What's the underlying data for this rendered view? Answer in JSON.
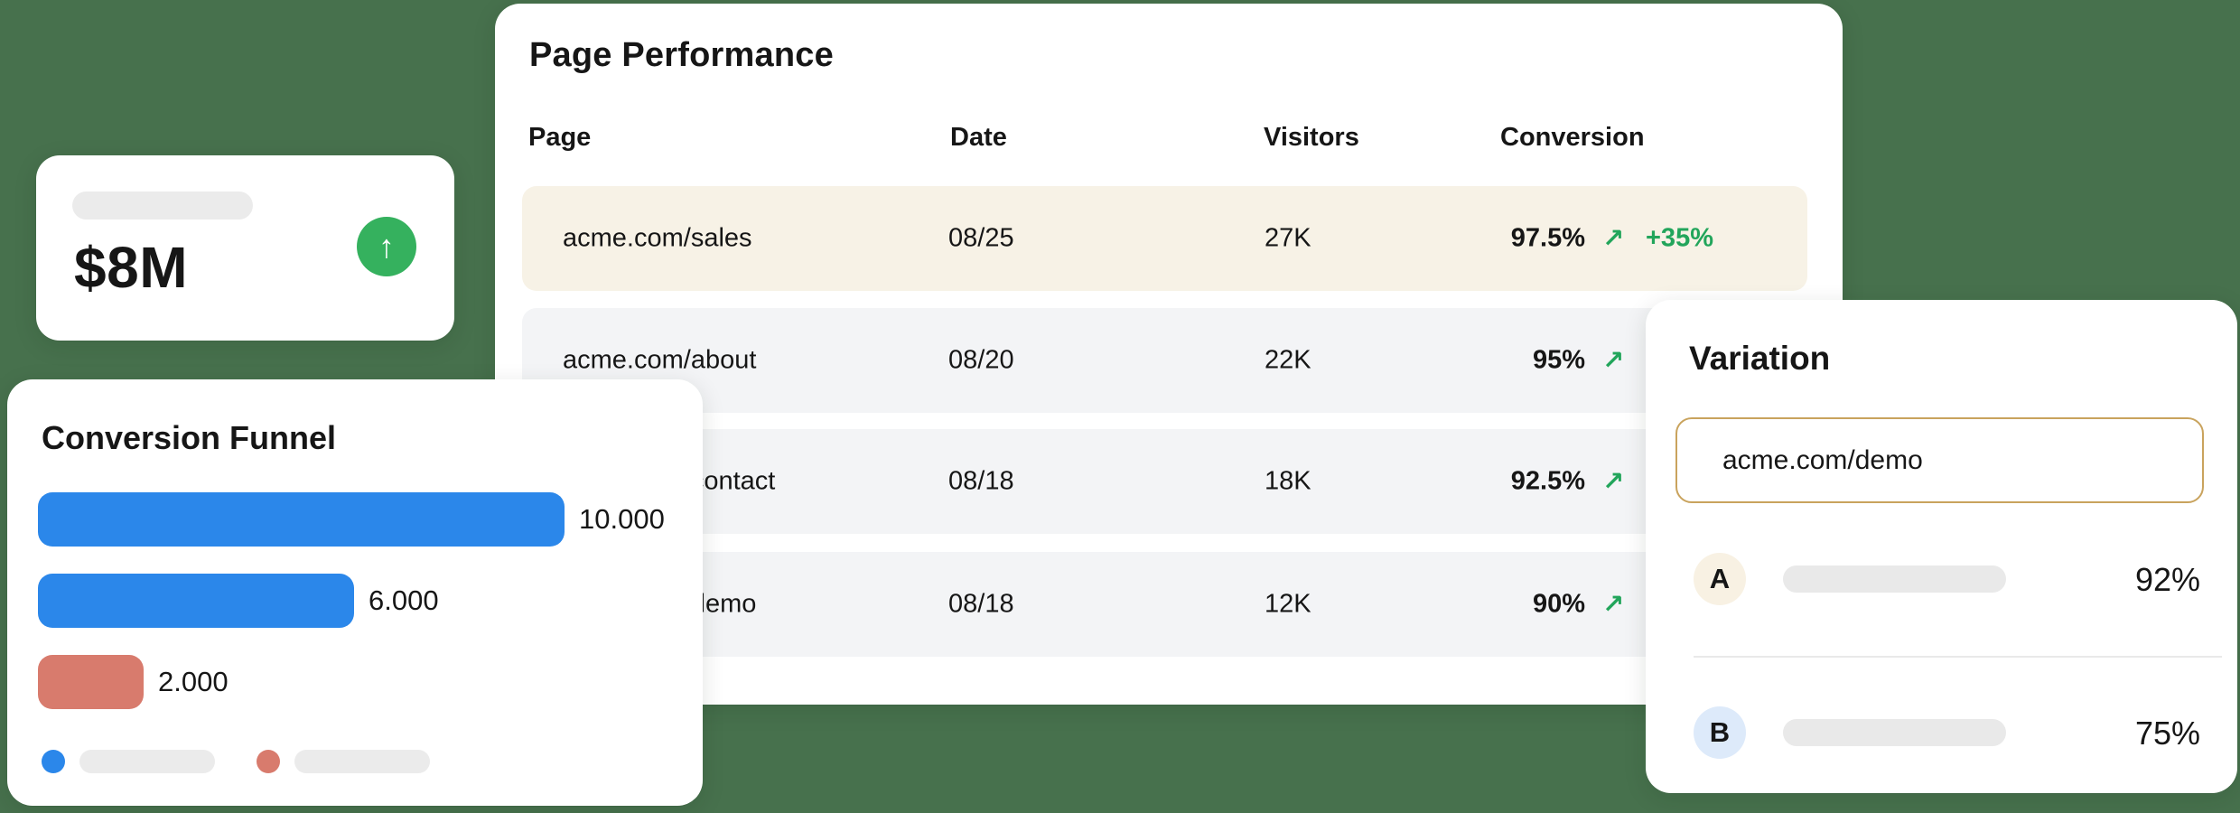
{
  "colors": {
    "background_green": "#47714d",
    "accent_green": "#22a55b",
    "trend_circle_green": "#35b15e",
    "highlight_row_beige": "#f7f2e6",
    "row_gray": "#f3f4f6",
    "funnel_blue": "#2b87ea",
    "funnel_salmon": "#d87b6d",
    "input_border_gold": "#c9a35d",
    "badge_a_beige": "#f8f1e3",
    "badge_b_blue": "#ddeafa"
  },
  "icons": {
    "trend_up": "↗",
    "arrow_up": "↑"
  },
  "revenue_card": {
    "value": "$8M"
  },
  "page_performance": {
    "title": "Page Performance",
    "columns": [
      "Page",
      "Date",
      "Visitors",
      "Conversion"
    ],
    "rows": [
      {
        "page": "acme.com/sales",
        "date": "08/25",
        "visitors": "27K",
        "conversion": "97.5%",
        "delta": "+35%"
      },
      {
        "page": "acme.com/about",
        "date": "08/20",
        "visitors": "22K",
        "conversion": "95%",
        "delta": ""
      },
      {
        "page": "acme.com/contact",
        "date": "08/18",
        "visitors": "18K",
        "conversion": "92.5%",
        "delta": ""
      },
      {
        "page": "acme.com/demo",
        "date": "08/18",
        "visitors": "12K",
        "conversion": "90%",
        "delta": ""
      }
    ]
  },
  "conversion_funnel": {
    "title": "Conversion Funnel",
    "chart_data": {
      "type": "bar",
      "orientation": "horizontal",
      "values": [
        10000,
        6000,
        2000
      ],
      "labels": [
        "10.000",
        "6.000",
        "2.000"
      ],
      "bar_colors": [
        "#2b87ea",
        "#2b87ea",
        "#d87b6d"
      ],
      "xlim": [
        0,
        13000
      ],
      "legend": [
        {
          "color": "#2b87ea",
          "label": ""
        },
        {
          "color": "#d87b6d",
          "label": ""
        }
      ]
    }
  },
  "variation": {
    "title": "Variation",
    "input_value": "acme.com/demo",
    "rows": [
      {
        "label": "A",
        "value": "92%"
      },
      {
        "label": "B",
        "value": "75%"
      }
    ]
  }
}
